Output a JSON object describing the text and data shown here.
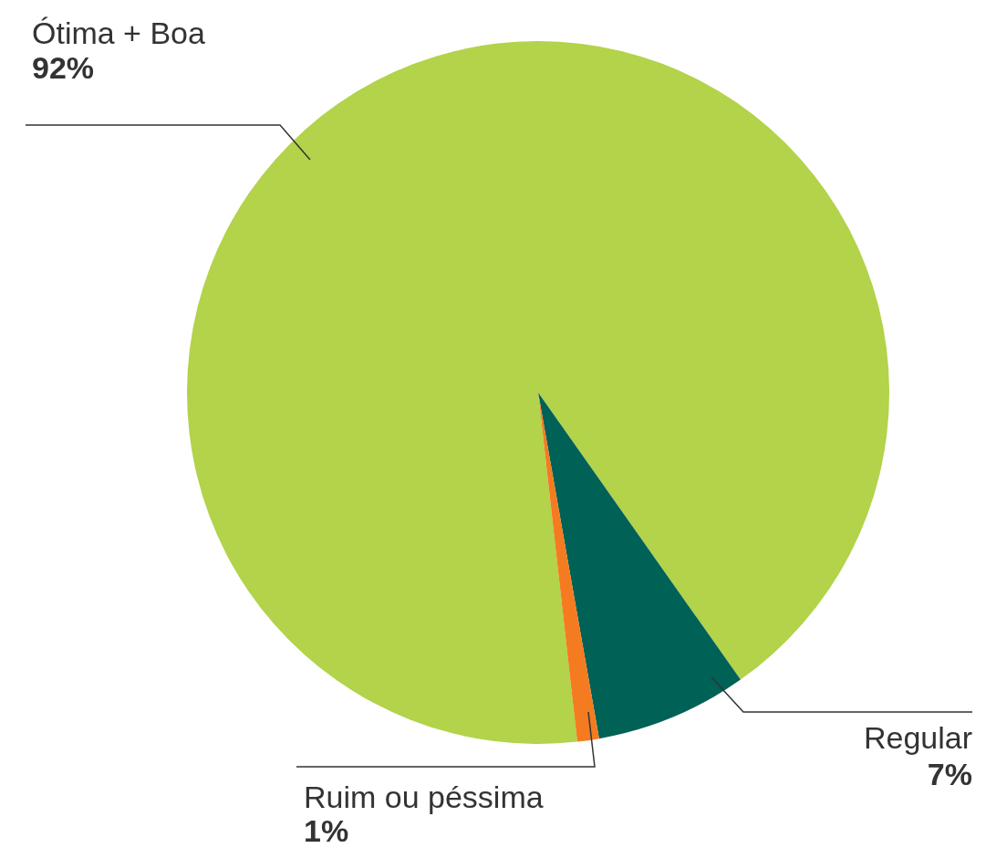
{
  "chart_data": {
    "type": "pie",
    "categories": [
      "Ótima + Boa",
      "Regular",
      "Ruim ou péssima"
    ],
    "values": [
      92,
      7,
      1
    ],
    "colors": [
      "#b2d34a",
      "#006156",
      "#f47b20"
    ],
    "value_labels": [
      "92%",
      "7%",
      "1%"
    ],
    "legend": false
  }
}
